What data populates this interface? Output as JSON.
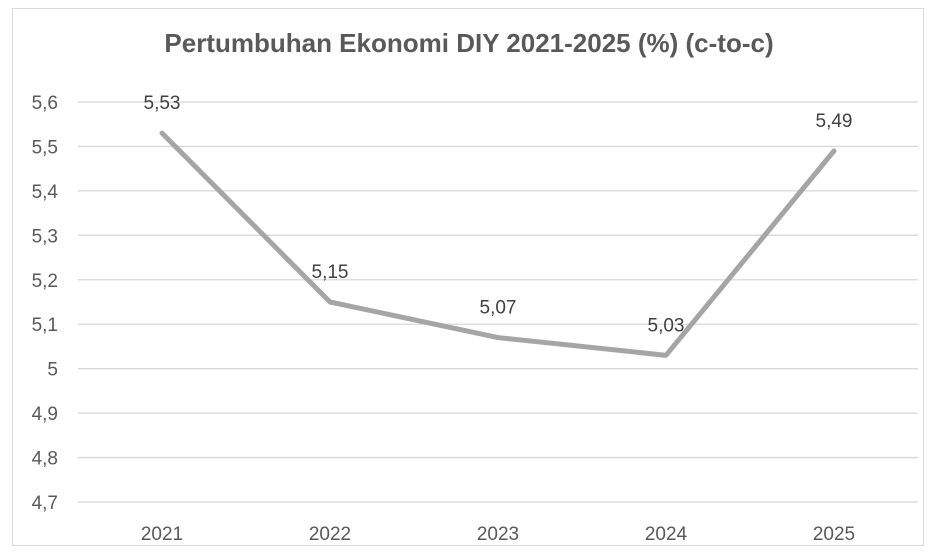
{
  "chart_data": {
    "type": "line",
    "title": "Pertumbuhan Ekonomi DIY 2021-2025 (%) (c-to-c)",
    "categories": [
      "2021",
      "2022",
      "2023",
      "2024",
      "2025"
    ],
    "series": [
      {
        "values": [
          5.53,
          5.15,
          5.07,
          5.03,
          5.49
        ]
      }
    ],
    "data_labels": [
      "5,53",
      "5,15",
      "5,07",
      "5,03",
      "5,49"
    ],
    "ylim": [
      4.7,
      5.6
    ],
    "yticks": [
      {
        "value": 5.6,
        "label": "5,6"
      },
      {
        "value": 5.5,
        "label": "5,5"
      },
      {
        "value": 5.4,
        "label": "5,4"
      },
      {
        "value": 5.3,
        "label": "5,3"
      },
      {
        "value": 5.2,
        "label": "5,2"
      },
      {
        "value": 5.1,
        "label": "5,1"
      },
      {
        "value": 5.0,
        "label": "5"
      },
      {
        "value": 4.9,
        "label": "4,9"
      },
      {
        "value": 4.8,
        "label": "4,8"
      },
      {
        "value": 4.7,
        "label": "4,7"
      }
    ],
    "grid": true,
    "legend": "none",
    "colors": {
      "line": "#a5a5a5",
      "grid": "#d9d9d9",
      "text": "#595959"
    }
  }
}
